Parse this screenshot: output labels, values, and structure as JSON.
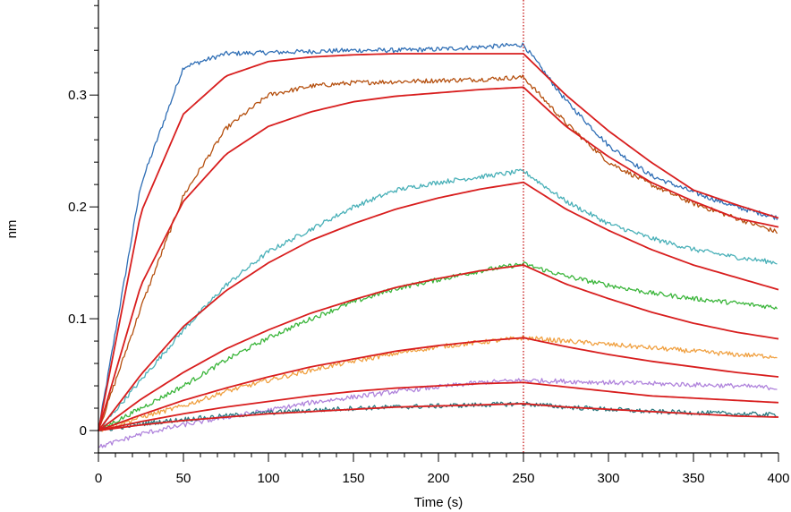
{
  "chart_data": {
    "type": "line",
    "xlabel": "Time (s)",
    "ylabel": "nm",
    "xlim": [
      0,
      400
    ],
    "ylim": [
      -0.02,
      0.385
    ],
    "x_ticks": [
      0,
      50,
      100,
      150,
      200,
      250,
      300,
      350,
      400
    ],
    "y_ticks": [
      0,
      0.1,
      0.2,
      0.3
    ],
    "x_tick_labels": [
      "0",
      "50",
      "100",
      "150",
      "200",
      "250",
      "300",
      "350",
      "400"
    ],
    "y_tick_labels": [
      "0",
      "0.1",
      "0.2",
      "0.3"
    ],
    "grid": false,
    "legend": "none",
    "annotation": {
      "type": "vertical-dotted-line",
      "x": 250,
      "color": "#c00000"
    },
    "x": [
      0,
      25,
      50,
      75,
      100,
      125,
      150,
      175,
      200,
      225,
      250,
      275,
      300,
      325,
      350,
      375,
      400
    ],
    "series": [
      {
        "kind": "measured",
        "color": "#2f6eb5",
        "values": [
          0.0,
          0.22,
          0.325,
          0.337,
          0.338,
          0.339,
          0.34,
          0.34,
          0.341,
          0.343,
          0.345,
          0.295,
          0.255,
          0.228,
          0.213,
          0.2,
          0.19
        ]
      },
      {
        "kind": "measured",
        "color": "#b5500f",
        "values": [
          0.0,
          0.11,
          0.21,
          0.27,
          0.3,
          0.308,
          0.311,
          0.312,
          0.313,
          0.314,
          0.316,
          0.275,
          0.24,
          0.22,
          0.203,
          0.19,
          0.177
        ]
      },
      {
        "kind": "measured",
        "color": "#49b0b8",
        "values": [
          0.0,
          0.045,
          0.09,
          0.13,
          0.16,
          0.18,
          0.2,
          0.215,
          0.222,
          0.227,
          0.232,
          0.205,
          0.185,
          0.172,
          0.162,
          0.155,
          0.15
        ]
      },
      {
        "kind": "measured",
        "color": "#3ab53a",
        "values": [
          0.0,
          0.02,
          0.04,
          0.063,
          0.083,
          0.1,
          0.115,
          0.127,
          0.135,
          0.143,
          0.149,
          0.138,
          0.13,
          0.123,
          0.118,
          0.114,
          0.11
        ]
      },
      {
        "kind": "measured",
        "color": "#f0a040",
        "values": [
          0.0,
          0.012,
          0.022,
          0.035,
          0.045,
          0.054,
          0.062,
          0.069,
          0.075,
          0.079,
          0.083,
          0.08,
          0.077,
          0.074,
          0.071,
          0.068,
          0.066
        ]
      },
      {
        "kind": "measured",
        "color": "#b084dc",
        "values": [
          -0.015,
          -0.003,
          0.005,
          0.012,
          0.018,
          0.025,
          0.03,
          0.035,
          0.039,
          0.043,
          0.045,
          0.044,
          0.043,
          0.042,
          0.041,
          0.04,
          0.038
        ]
      },
      {
        "kind": "measured",
        "color": "#2a7a80",
        "values": [
          0.0,
          0.006,
          0.01,
          0.013,
          0.016,
          0.018,
          0.02,
          0.021,
          0.022,
          0.023,
          0.024,
          0.021,
          0.019,
          0.017,
          0.016,
          0.015,
          0.014
        ]
      },
      {
        "kind": "fit",
        "color": "#d81e1e",
        "values": [
          0.0,
          0.195,
          0.283,
          0.317,
          0.33,
          0.334,
          0.336,
          0.337,
          0.337,
          0.337,
          0.337,
          0.3,
          0.268,
          0.24,
          0.215,
          0.202,
          0.19
        ]
      },
      {
        "kind": "fit",
        "color": "#d81e1e",
        "values": [
          0.0,
          0.13,
          0.205,
          0.247,
          0.272,
          0.285,
          0.294,
          0.299,
          0.302,
          0.305,
          0.307,
          0.272,
          0.245,
          0.222,
          0.205,
          0.19,
          0.182
        ]
      },
      {
        "kind": "fit",
        "color": "#d81e1e",
        "values": [
          0.0,
          0.05,
          0.093,
          0.125,
          0.15,
          0.17,
          0.185,
          0.198,
          0.208,
          0.216,
          0.222,
          0.198,
          0.179,
          0.162,
          0.148,
          0.137,
          0.126
        ]
      },
      {
        "kind": "fit",
        "color": "#d81e1e",
        "values": [
          0.0,
          0.028,
          0.052,
          0.073,
          0.09,
          0.105,
          0.117,
          0.128,
          0.136,
          0.143,
          0.148,
          0.131,
          0.118,
          0.106,
          0.096,
          0.088,
          0.082
        ]
      },
      {
        "kind": "fit",
        "color": "#d81e1e",
        "values": [
          0.0,
          0.014,
          0.027,
          0.038,
          0.048,
          0.057,
          0.064,
          0.071,
          0.076,
          0.08,
          0.083,
          0.075,
          0.068,
          0.062,
          0.057,
          0.052,
          0.048
        ]
      },
      {
        "kind": "fit",
        "color": "#d81e1e",
        "values": [
          0.0,
          0.008,
          0.015,
          0.021,
          0.026,
          0.031,
          0.035,
          0.038,
          0.04,
          0.042,
          0.043,
          0.039,
          0.035,
          0.031,
          0.029,
          0.027,
          0.025
        ]
      },
      {
        "kind": "fit",
        "color": "#d81e1e",
        "values": [
          0.0,
          0.005,
          0.009,
          0.012,
          0.015,
          0.017,
          0.019,
          0.021,
          0.022,
          0.023,
          0.024,
          0.021,
          0.019,
          0.017,
          0.015,
          0.013,
          0.012
        ]
      }
    ]
  }
}
